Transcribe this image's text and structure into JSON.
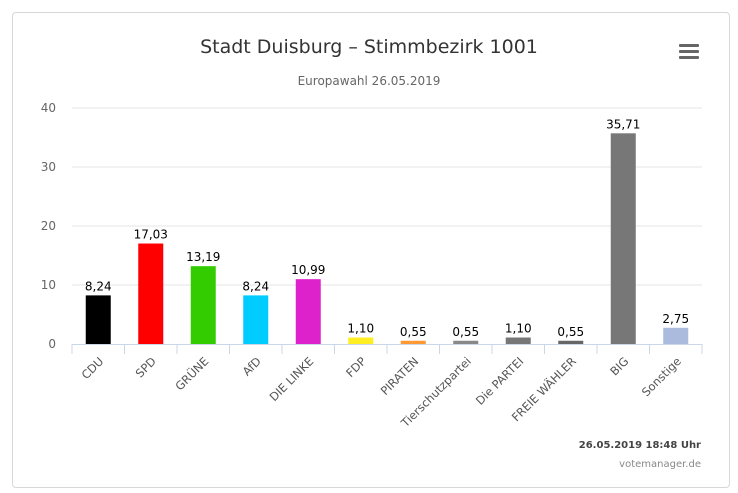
{
  "chart_data": {
    "type": "bar",
    "title": "Stadt Duisburg – Stimmbezirk 1001",
    "subtitle": "Europawahl 26.05.2019",
    "categories": [
      "CDU",
      "SPD",
      "GRÜNE",
      "AfD",
      "DIE LINKE",
      "FDP",
      "PIRATEN",
      "Tierschutzpartei",
      "Die PARTEI",
      "FREIE WÄHLER",
      "BIG",
      "Sonstige"
    ],
    "values": [
      8.24,
      17.03,
      13.19,
      8.24,
      10.99,
      1.1,
      0.55,
      0.55,
      1.1,
      0.55,
      35.71,
      2.75
    ],
    "data_labels": [
      "8,24",
      "17,03",
      "13,19",
      "8,24",
      "10,99",
      "1,10",
      "0,55",
      "0,55",
      "1,10",
      "0,55",
      "35,71",
      "2,75"
    ],
    "colors": [
      "#000000",
      "#ff0000",
      "#33cc00",
      "#00ccff",
      "#dd22cc",
      "#ffee22",
      "#ff9933",
      "#888888",
      "#777777",
      "#666666",
      "#777777",
      "#aabbdd"
    ],
    "ylim": [
      0,
      40
    ],
    "yticks": [
      "0",
      "10",
      "20",
      "30",
      "40"
    ],
    "grid": true,
    "xlabel": "",
    "ylabel": ""
  },
  "footer": {
    "timestamp": "26.05.2019 18:48 Uhr",
    "credit": "votemanager.de"
  },
  "icons": {
    "menu": "hamburger-menu-icon"
  }
}
